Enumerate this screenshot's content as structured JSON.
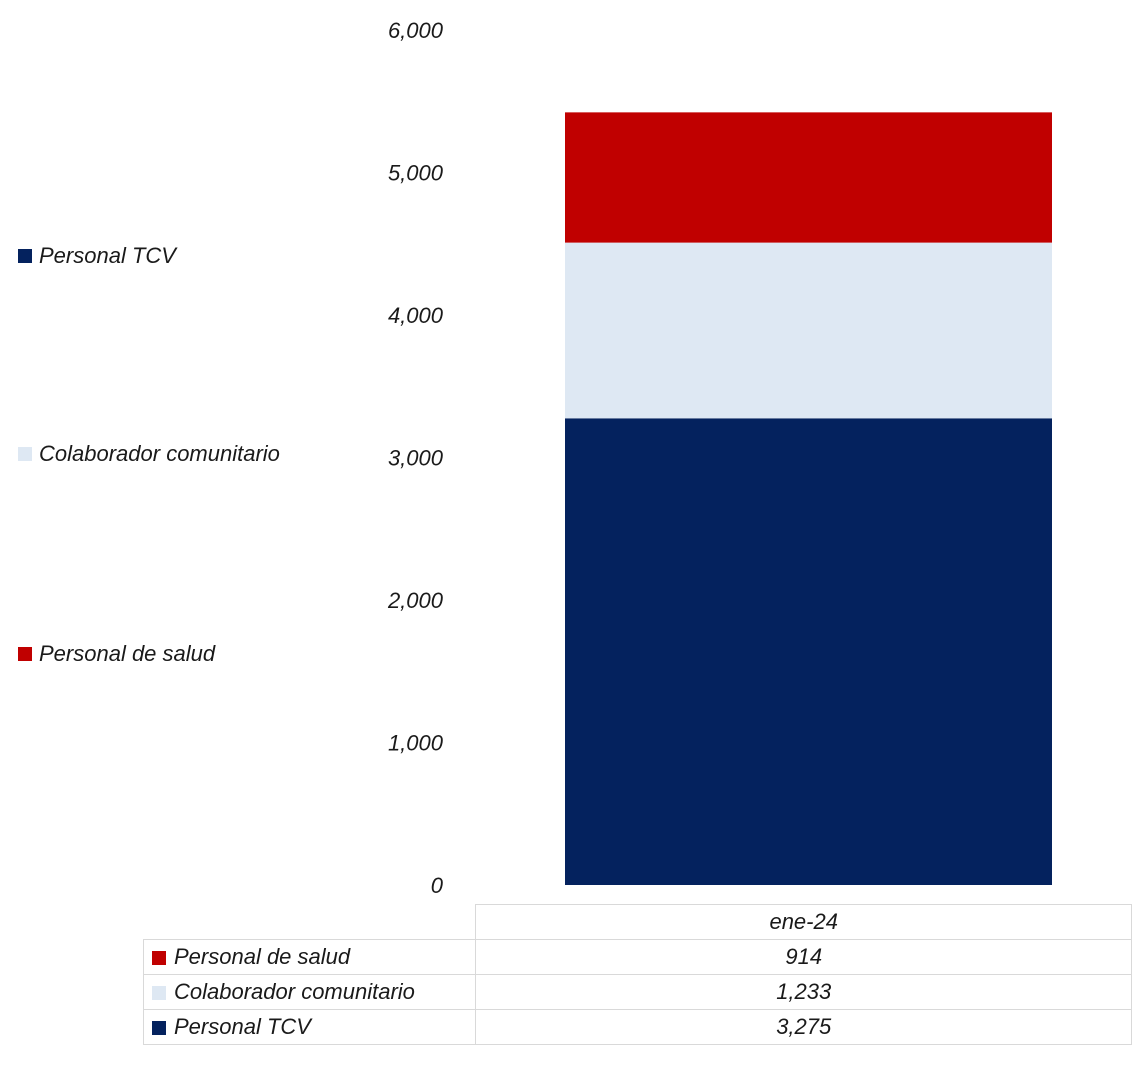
{
  "chart_data": {
    "type": "bar",
    "stacked": true,
    "categories": [
      "ene-24"
    ],
    "series": [
      {
        "name": "Personal TCV",
        "values": [
          3275
        ],
        "color": "#04225E"
      },
      {
        "name": "Colaborador comunitario",
        "values": [
          1233
        ],
        "color": "#DEE8F3"
      },
      {
        "name": "Personal de salud",
        "values": [
          914
        ],
        "color": "#C00000"
      }
    ],
    "ylim": [
      0,
      6000
    ],
    "yticks": [
      "0",
      "1,000",
      "2,000",
      "3,000",
      "4,000",
      "5,000",
      "6,000"
    ],
    "legend_position": "left",
    "data_table": {
      "header": "ene-24",
      "rows": [
        {
          "label": "Personal de salud",
          "value": "914",
          "color": "#C00000"
        },
        {
          "label": "Colaborador comunitario",
          "value": "1,233",
          "color": "#DEE8F3"
        },
        {
          "label": "Personal TCV",
          "value": "3,275",
          "color": "#04225E"
        }
      ]
    },
    "grid": false
  }
}
